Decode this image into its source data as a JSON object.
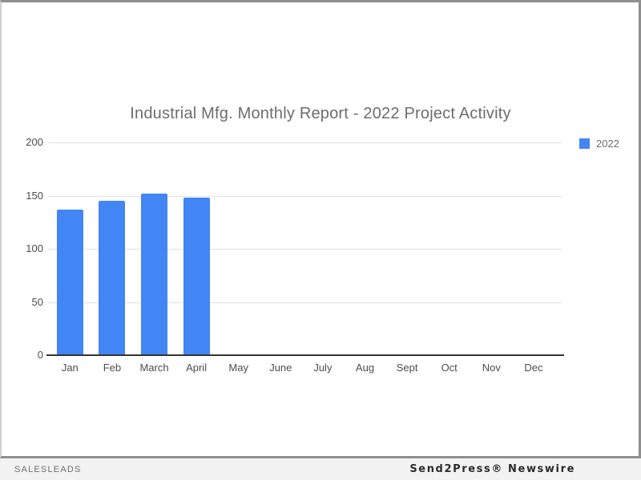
{
  "title": "Industrial Mfg. Monthly Report - 2022 Project Activity",
  "legend": {
    "label": "2022",
    "swatch_color": "#4285f4"
  },
  "footer": {
    "left": "SALESLEADS",
    "right": "Send2Press® Newswire"
  },
  "colors": {
    "bar": "#4285f4",
    "title_text": "#6d6d6d",
    "axis_text": "#4d4d4d",
    "gridline": "#e2e2e2",
    "baseline": "#333333",
    "footer_bg": "#f2f2f2",
    "frame_border": "#8f8f8f"
  },
  "chart_data": {
    "type": "bar",
    "title": "Industrial Mfg. Monthly Report - 2022 Project Activity",
    "categories": [
      "Jan",
      "Feb",
      "March",
      "April",
      "May",
      "June",
      "July",
      "Aug",
      "Sept",
      "Oct",
      "Nov",
      "Dec"
    ],
    "series": [
      {
        "name": "2022",
        "color": "#4285f4",
        "values": [
          137,
          145,
          152,
          148,
          null,
          null,
          null,
          null,
          null,
          null,
          null,
          null
        ]
      }
    ],
    "xlabel": "",
    "ylabel": "",
    "ylim": [
      0,
      200
    ],
    "yticks": [
      0,
      50,
      100,
      150,
      200
    ],
    "grid": true,
    "legend_position": "top-right"
  }
}
